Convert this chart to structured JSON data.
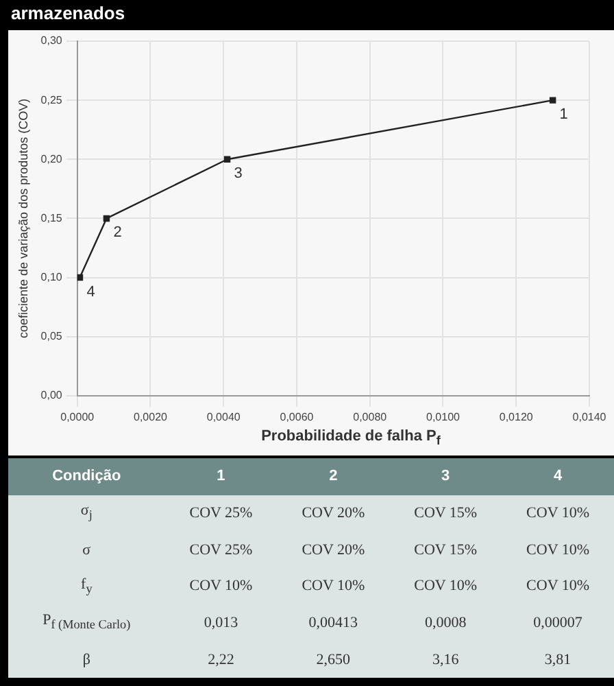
{
  "chart_data": {
    "type": "line",
    "title": "armazenados",
    "xlabel": "Probabilidade de falha P$_{f}$",
    "ylabel": "coeficiente de variação dos produtos (COV)",
    "x": [
      7e-05,
      0.0008,
      0.0041,
      0.013
    ],
    "series": [
      {
        "color": "#222222",
        "values": [
          0.1,
          0.15,
          0.2,
          0.25
        ]
      }
    ],
    "xlim": [
      0,
      0.014
    ],
    "xticks": [
      {
        "value": 0,
        "label": "0,0000"
      },
      {
        "value": 0.002,
        "label": "0,0020"
      },
      {
        "value": 0.004,
        "label": "0,0040"
      },
      {
        "value": 0.006,
        "label": "0,0060"
      },
      {
        "value": 0.008,
        "label": "0,0080"
      },
      {
        "value": 0.01,
        "label": "0,0100"
      },
      {
        "value": 0.012,
        "label": "0,0120"
      },
      {
        "value": 0.014,
        "label": "0,0140"
      }
    ],
    "ylim": [
      0,
      0.3
    ],
    "yticks": [
      {
        "value": 0,
        "label": "0,00"
      },
      {
        "value": 0.05,
        "label": "0,05"
      },
      {
        "value": 0.1,
        "label": "0,10"
      },
      {
        "value": 0.15,
        "label": "0,15"
      },
      {
        "value": 0.2,
        "label": "0,20"
      },
      {
        "value": 0.25,
        "label": "0,25"
      },
      {
        "value": 0.3,
        "label": "0,30"
      }
    ],
    "grid": true,
    "legend": false,
    "marker": "square",
    "line_style": "solid",
    "annotations": [
      {
        "text": "1",
        "x": 0.013,
        "y": 0.25
      },
      {
        "text": "3",
        "x": 0.0041,
        "y": 0.2
      },
      {
        "text": "2",
        "x": 0.0008,
        "y": 0.15
      },
      {
        "text": "4",
        "x": 7e-05,
        "y": 0.1
      },
      "Condição",
      "1",
      "2",
      "3",
      "4",
      "σ$_{j}$",
      "COV 25%",
      "COV 20%",
      "COV 15%",
      "COV 10%",
      "σ",
      "COV 25%",
      "COV 20%",
      "COV 15%",
      "COV 10%",
      "f$_{y}$",
      "COV 10%",
      "COV 10%",
      "COV 10%",
      "COV 10%",
      "P$_{f (Monte Carlo)}$",
      "0,013",
      "0,00413",
      "0,0008",
      "0,00007",
      "β",
      "2,22",
      "2,650",
      "3,16",
      "3,81"
    ]
  }
}
